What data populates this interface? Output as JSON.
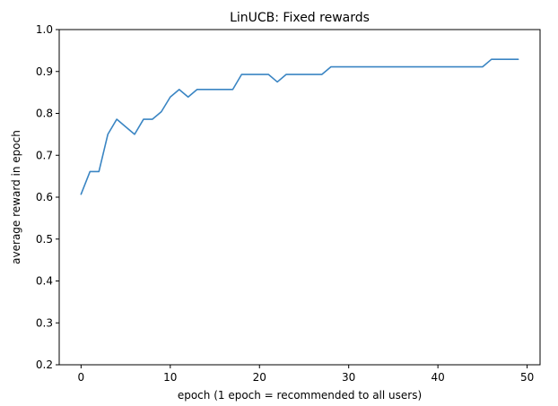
{
  "chart_data": {
    "type": "line",
    "title": "LinUCB: Fixed rewards",
    "xlabel": "epoch (1 epoch = recommended to all users)",
    "ylabel": "average reward in epoch",
    "xlim": [
      -2.45,
      51.45
    ],
    "ylim": [
      0.2,
      1.0
    ],
    "xticks": [
      0,
      10,
      20,
      30,
      40,
      50
    ],
    "yticks": [
      0.2,
      0.3,
      0.4,
      0.5,
      0.6,
      0.7,
      0.8,
      0.9,
      1.0
    ],
    "ytick_labels": [
      "0.2",
      "0.3",
      "0.4",
      "0.5",
      "0.6",
      "0.7",
      "0.8",
      "0.9",
      "1.0"
    ],
    "grid": false,
    "legend": "none",
    "series": [
      {
        "color": "#3a85c3",
        "x": [
          0,
          1,
          2,
          3,
          4,
          5,
          6,
          7,
          8,
          9,
          10,
          11,
          12,
          13,
          14,
          15,
          16,
          17,
          18,
          19,
          20,
          21,
          22,
          23,
          24,
          25,
          26,
          27,
          28,
          29,
          30,
          31,
          32,
          33,
          34,
          35,
          36,
          37,
          38,
          39,
          40,
          41,
          42,
          43,
          44,
          45,
          46,
          47,
          48,
          49
        ],
        "y": [
          0.607,
          0.661,
          0.661,
          0.75,
          0.786,
          0.768,
          0.75,
          0.786,
          0.786,
          0.804,
          0.839,
          0.857,
          0.839,
          0.857,
          0.857,
          0.857,
          0.857,
          0.857,
          0.893,
          0.893,
          0.893,
          0.893,
          0.875,
          0.893,
          0.893,
          0.893,
          0.893,
          0.893,
          0.911,
          0.911,
          0.911,
          0.911,
          0.911,
          0.911,
          0.911,
          0.911,
          0.911,
          0.911,
          0.911,
          0.911,
          0.911,
          0.911,
          0.911,
          0.911,
          0.911,
          0.911,
          0.929,
          0.929,
          0.929,
          0.929
        ]
      }
    ]
  }
}
